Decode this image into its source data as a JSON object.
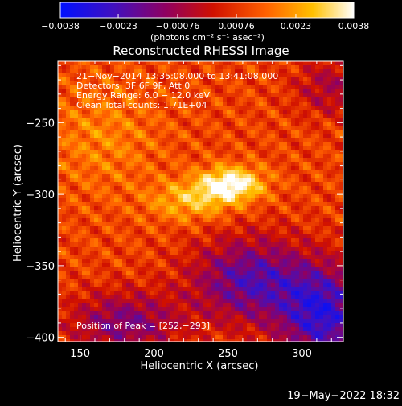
{
  "chart_data": {
    "type": "heatmap",
    "title": "Reconstructed RHESSI Image",
    "xlabel": "Heliocentric X (arcsec)",
    "ylabel": "Heliocentric Y (arcsec)",
    "xlim": [
      135,
      328
    ],
    "ylim": [
      -403,
      -207
    ],
    "x_ticks": [
      150,
      200,
      250,
      300
    ],
    "y_ticks": [
      -250,
      -300,
      -350,
      -400
    ],
    "x_tick_labels": [
      "150",
      "200",
      "250",
      "300"
    ],
    "y_tick_labels": [
      "−250",
      "−300",
      "−350",
      "−400"
    ],
    "colorbar": {
      "min": -0.0038,
      "max": 0.0038,
      "ticks": [
        -0.0038,
        -0.0023,
        -0.00076,
        0.00076,
        0.0023,
        0.0038
      ],
      "tick_labels": [
        "−0.0038",
        "−0.0023",
        "−0.00076",
        "0.00076",
        "0.0023",
        "0.0038"
      ],
      "units_label": "(photons cm⁻² s⁻¹ asec⁻²)",
      "colors": [
        "#0010ff",
        "#4010c0",
        "#900060",
        "#d01000",
        "#ff6000",
        "#ffc000",
        "#ffffff"
      ]
    },
    "info_lines": [
      "21−Nov−2014 13:35:08.000 to 13:41:08.000",
      "Detectors: 3F 6F 9F, Att 0",
      "Energy Range: 6.0 − 12.0 keV",
      "Clean      Total counts: 1.71E+04"
    ],
    "peak_label": "Position of Peak = [252,−293]",
    "peak_position": [
      252,
      -293
    ],
    "timestamp": "19−May−2022 18:32",
    "grid": false
  }
}
